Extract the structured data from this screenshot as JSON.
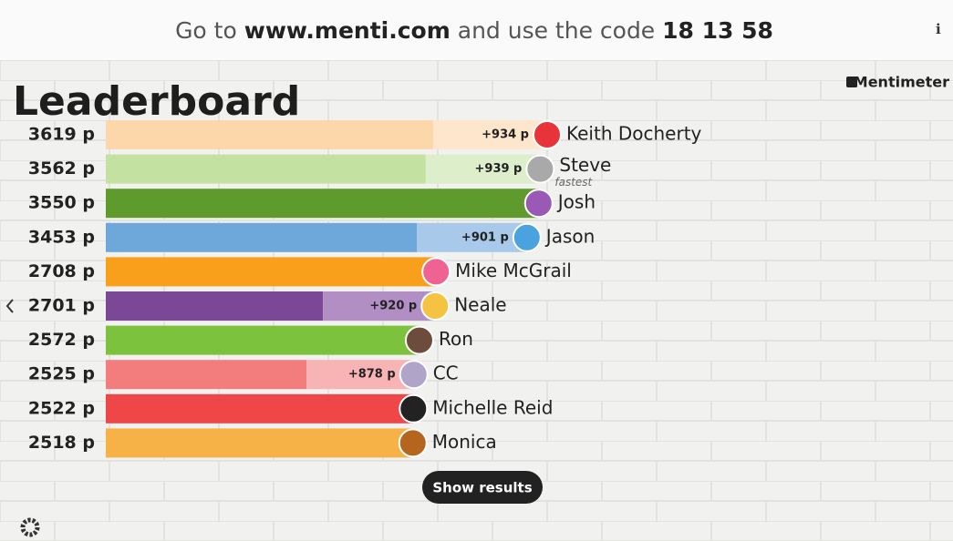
{
  "header": {
    "lead": "Go to",
    "url": "www.menti.com",
    "middle": "and use the code",
    "code": "18 13 58",
    "info": "i"
  },
  "brand": "Mentimeter",
  "title": "Leaderboard",
  "rows": [
    {
      "score": 3619,
      "score_label": "3619 p",
      "gain": 934,
      "gain_label": "+934 p",
      "name": "Keith Docherty",
      "color": "#fcd7aa",
      "gain_color": "#fde6cc",
      "icon_color": "#e8333a"
    },
    {
      "score": 3562,
      "score_label": "3562 p",
      "gain": 939,
      "gain_label": "+939 p",
      "name": "Steve",
      "note": "fastest",
      "color": "#c3e2a2",
      "gain_color": "#ddefca",
      "icon_color": "#a9a9a9"
    },
    {
      "score": 3550,
      "score_label": "3550 p",
      "name": "Josh",
      "color": "#5e9b2c",
      "icon_color": "#9b59b6"
    },
    {
      "score": 3453,
      "score_label": "3453 p",
      "gain": 901,
      "gain_label": "+901 p",
      "name": "Jason",
      "color": "#6ea7da",
      "gain_color": "#a8c9e9",
      "icon_color": "#4aa3df"
    },
    {
      "score": 2708,
      "score_label": "2708 p",
      "name": "Mike McGrail",
      "color": "#f8a01c",
      "icon_color": "#f06292"
    },
    {
      "score": 2701,
      "score_label": "2701 p",
      "gain": 920,
      "gain_label": "+920 p",
      "name": "Neale",
      "color": "#7a4896",
      "gain_color": "#b18fc5",
      "icon_color": "#f5c242"
    },
    {
      "score": 2572,
      "score_label": "2572 p",
      "name": "Ron",
      "color": "#7cc23c",
      "icon_color": "#6d4c3d"
    },
    {
      "score": 2525,
      "score_label": "2525 p",
      "gain": 878,
      "gain_label": "+878 p",
      "name": "CC",
      "color": "#f37c7c",
      "gain_color": "#f8b4b4",
      "icon_color": "#b0a4c8"
    },
    {
      "score": 2522,
      "score_label": "2522 p",
      "name": "Michelle Reid",
      "color": "#ef4747",
      "icon_color": "#222222"
    },
    {
      "score": 2518,
      "score_label": "2518 p",
      "name": "Monica",
      "color": "#f6b246",
      "icon_color": "#b5651d"
    }
  ],
  "button": "Show results"
}
